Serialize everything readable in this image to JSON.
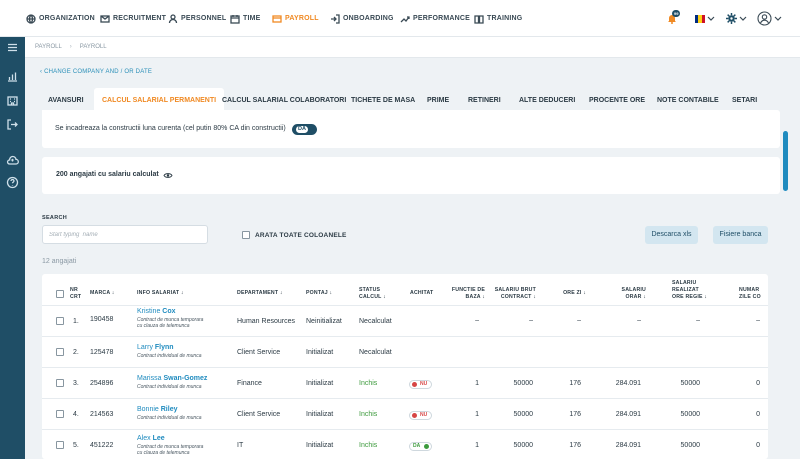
{
  "nav": {
    "items": [
      {
        "label": "ORGANIZATION",
        "icon": "globe-icon"
      },
      {
        "label": "RECRUITMENT",
        "icon": "envelope-icon"
      },
      {
        "label": "PERSONNEL",
        "icon": "person-icon"
      },
      {
        "label": "TIME",
        "icon": "calendar-icon"
      },
      {
        "label": "PAYROLL",
        "icon": "wallet-icon"
      },
      {
        "label": "ONBOARDING",
        "icon": "login-icon"
      },
      {
        "label": "PERFORMANCE",
        "icon": "trend-icon"
      },
      {
        "label": "TRAINING",
        "icon": "book-icon"
      }
    ],
    "active": "PAYROLL",
    "notification_badge": "99",
    "accent_color": "#f08a24"
  },
  "breadcrumb": [
    "PAYROLL",
    "PAYROLL"
  ],
  "change_link": "CHANGE COMPANY AND / OR DATE",
  "tabs": [
    "AVANSURI",
    "CALCUL SALARIAL PERMANENTI",
    "CALCUL SALARIAL COLABORATORI",
    "TICHETE DE MASA",
    "PRIME",
    "RETINERI",
    "ALTE DEDUCERI",
    "PROCENTE ORE",
    "NOTE CONTABILE",
    "SETARI"
  ],
  "construction": {
    "text": "Se incadreaza la constructii luna curenta (cel putin 80% CA din constructii)",
    "toggle": "DA"
  },
  "summary": {
    "text": "200 angajati cu salariu calculat"
  },
  "search": {
    "label": "SEARCH",
    "placeholder": "Start typing  name"
  },
  "show_all_columns": "ARATA TOATE COLOANELE",
  "buttons": {
    "download": "Descarca xls",
    "bank": "Fisiere banca"
  },
  "employee_count": "12 angajati",
  "columns": [
    "NR CRT",
    "MARCA",
    "INFO SALARIAT",
    "DEPARTAMENT",
    "PONTAJ",
    "STATUS CALCUL",
    "ACHITAT",
    "FUNCTIE DE BAZA",
    "SALARIU BRUT CONTRACT",
    "ORE ZI",
    "SALARIU ORAR",
    "SALARIU REALIZAT ORE REGIE",
    "NUMAR ZILE CO"
  ],
  "rows": [
    {
      "nr": "1.",
      "marca": "190458",
      "first": "Kristine",
      "last": "Cox",
      "contract": [
        "Contract de munca temporara",
        "cu clauza de telemunca"
      ],
      "dept": "Human Resources",
      "pontaj": "Neinitializat",
      "status": "Necalculat",
      "achitat": "",
      "functie": "–",
      "brut": "–",
      "ore": "–",
      "orar": "–",
      "realizat": "–",
      "co": "–"
    },
    {
      "nr": "2.",
      "marca": "125478",
      "first": "Larry",
      "last": "Flynn",
      "contract": [
        "Contract individual de munca"
      ],
      "dept": "Client Service",
      "pontaj": "Initializat",
      "status": "Necalculat",
      "achitat": "",
      "functie": "",
      "brut": "",
      "ore": "",
      "orar": "",
      "realizat": "",
      "co": ""
    },
    {
      "nr": "3.",
      "marca": "254896",
      "first": "Marissa",
      "last": "Swan-Gomez",
      "contract": [
        "Contract individual de munca"
      ],
      "dept": "Finance",
      "pontaj": "Initializat",
      "status": "Inchis",
      "achitat": "NU",
      "functie": "1",
      "brut": "50000",
      "ore": "176",
      "orar": "284.091",
      "realizat": "50000",
      "co": "0"
    },
    {
      "nr": "4.",
      "marca": "214563",
      "first": "Bonnie",
      "last": "Riley",
      "contract": [
        "Contract individual de munca"
      ],
      "dept": "Client Service",
      "pontaj": "Initializat",
      "status": "Inchis",
      "achitat": "NU",
      "functie": "1",
      "brut": "50000",
      "ore": "176",
      "orar": "284.091",
      "realizat": "50000",
      "co": "0"
    },
    {
      "nr": "5.",
      "marca": "451222",
      "first": "Alex",
      "last": "Lee",
      "contract": [
        "Contract de munca temporara",
        "cu clauza de telemunca"
      ],
      "dept": "IT",
      "pontaj": "Initializat",
      "status": "Inchis",
      "achitat": "DA",
      "functie": "1",
      "brut": "50000",
      "ore": "176",
      "orar": "284.091",
      "realizat": "50000",
      "co": "0"
    }
  ]
}
